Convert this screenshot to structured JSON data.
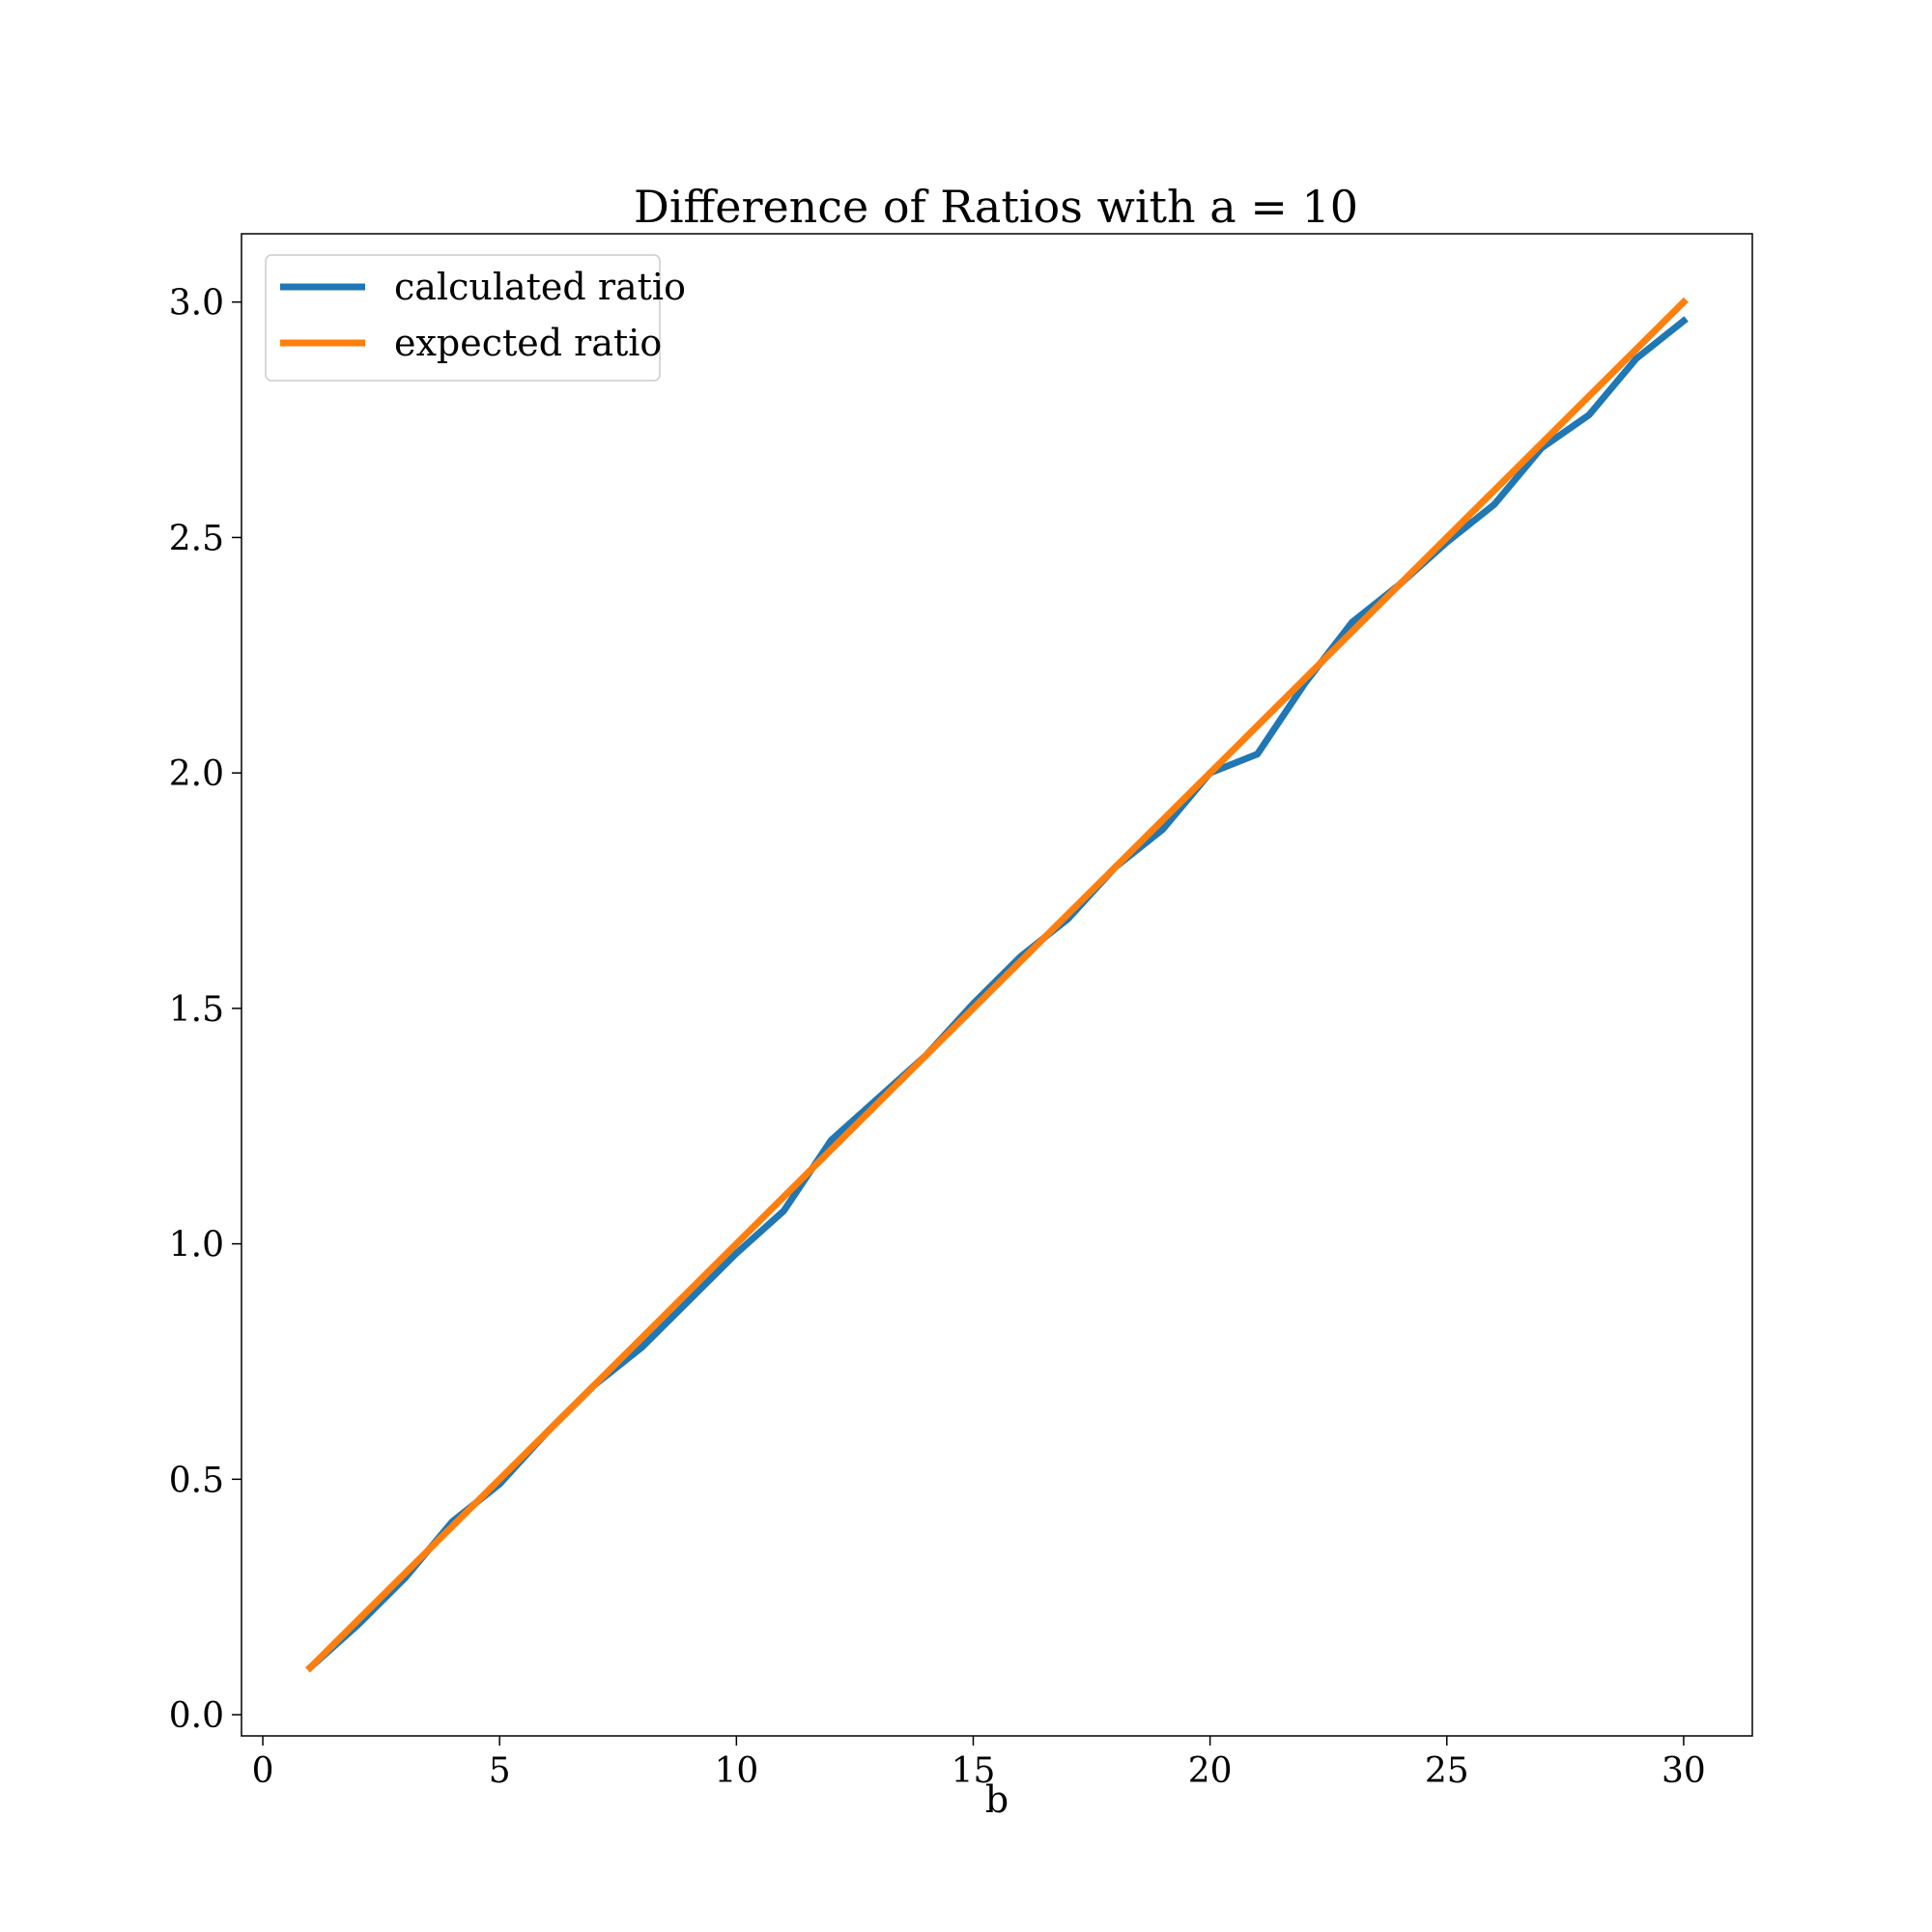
{
  "chart_data": {
    "type": "line",
    "title": "Difference of Ratios with a = 10",
    "xlabel": "b",
    "ylabel": "",
    "xlim": [
      -0.45,
      31.45
    ],
    "ylim": [
      -0.045,
      3.145
    ],
    "xticks": [
      0,
      5,
      10,
      15,
      20,
      25,
      30
    ],
    "xtick_labels": [
      "0",
      "5",
      "10",
      "15",
      "20",
      "25",
      "30"
    ],
    "yticks": [
      0.0,
      0.5,
      1.0,
      1.5,
      2.0,
      2.5,
      3.0
    ],
    "ytick_labels": [
      "0.0",
      "0.5",
      "1.0",
      "1.5",
      "2.0",
      "2.5",
      "3.0"
    ],
    "grid": false,
    "legend_position": "top-left",
    "x": [
      1,
      2,
      3,
      4,
      5,
      6,
      7,
      8,
      9,
      10,
      11,
      12,
      13,
      14,
      15,
      16,
      17,
      18,
      19,
      20,
      21,
      22,
      23,
      24,
      25,
      26,
      27,
      28,
      29,
      30
    ],
    "series": [
      {
        "name": "calculated ratio",
        "color": "#1f77b4",
        "values": [
          0.1,
          0.19,
          0.29,
          0.41,
          0.49,
          0.6,
          0.7,
          0.78,
          0.88,
          0.98,
          1.07,
          1.22,
          1.31,
          1.4,
          1.51,
          1.61,
          1.69,
          1.8,
          1.88,
          2.0,
          2.04,
          2.19,
          2.32,
          2.4,
          2.49,
          2.57,
          2.69,
          2.76,
          2.88,
          2.96
        ]
      },
      {
        "name": "expected ratio",
        "color": "#ff7f0e",
        "values": [
          0.1,
          0.2,
          0.3,
          0.4,
          0.5,
          0.6,
          0.7,
          0.8,
          0.9,
          1.0,
          1.1,
          1.2,
          1.3,
          1.4,
          1.5,
          1.6,
          1.7,
          1.8,
          1.9,
          2.0,
          2.1,
          2.2,
          2.3,
          2.4,
          2.5,
          2.6,
          2.7,
          2.8,
          2.9,
          3.0
        ]
      }
    ]
  }
}
